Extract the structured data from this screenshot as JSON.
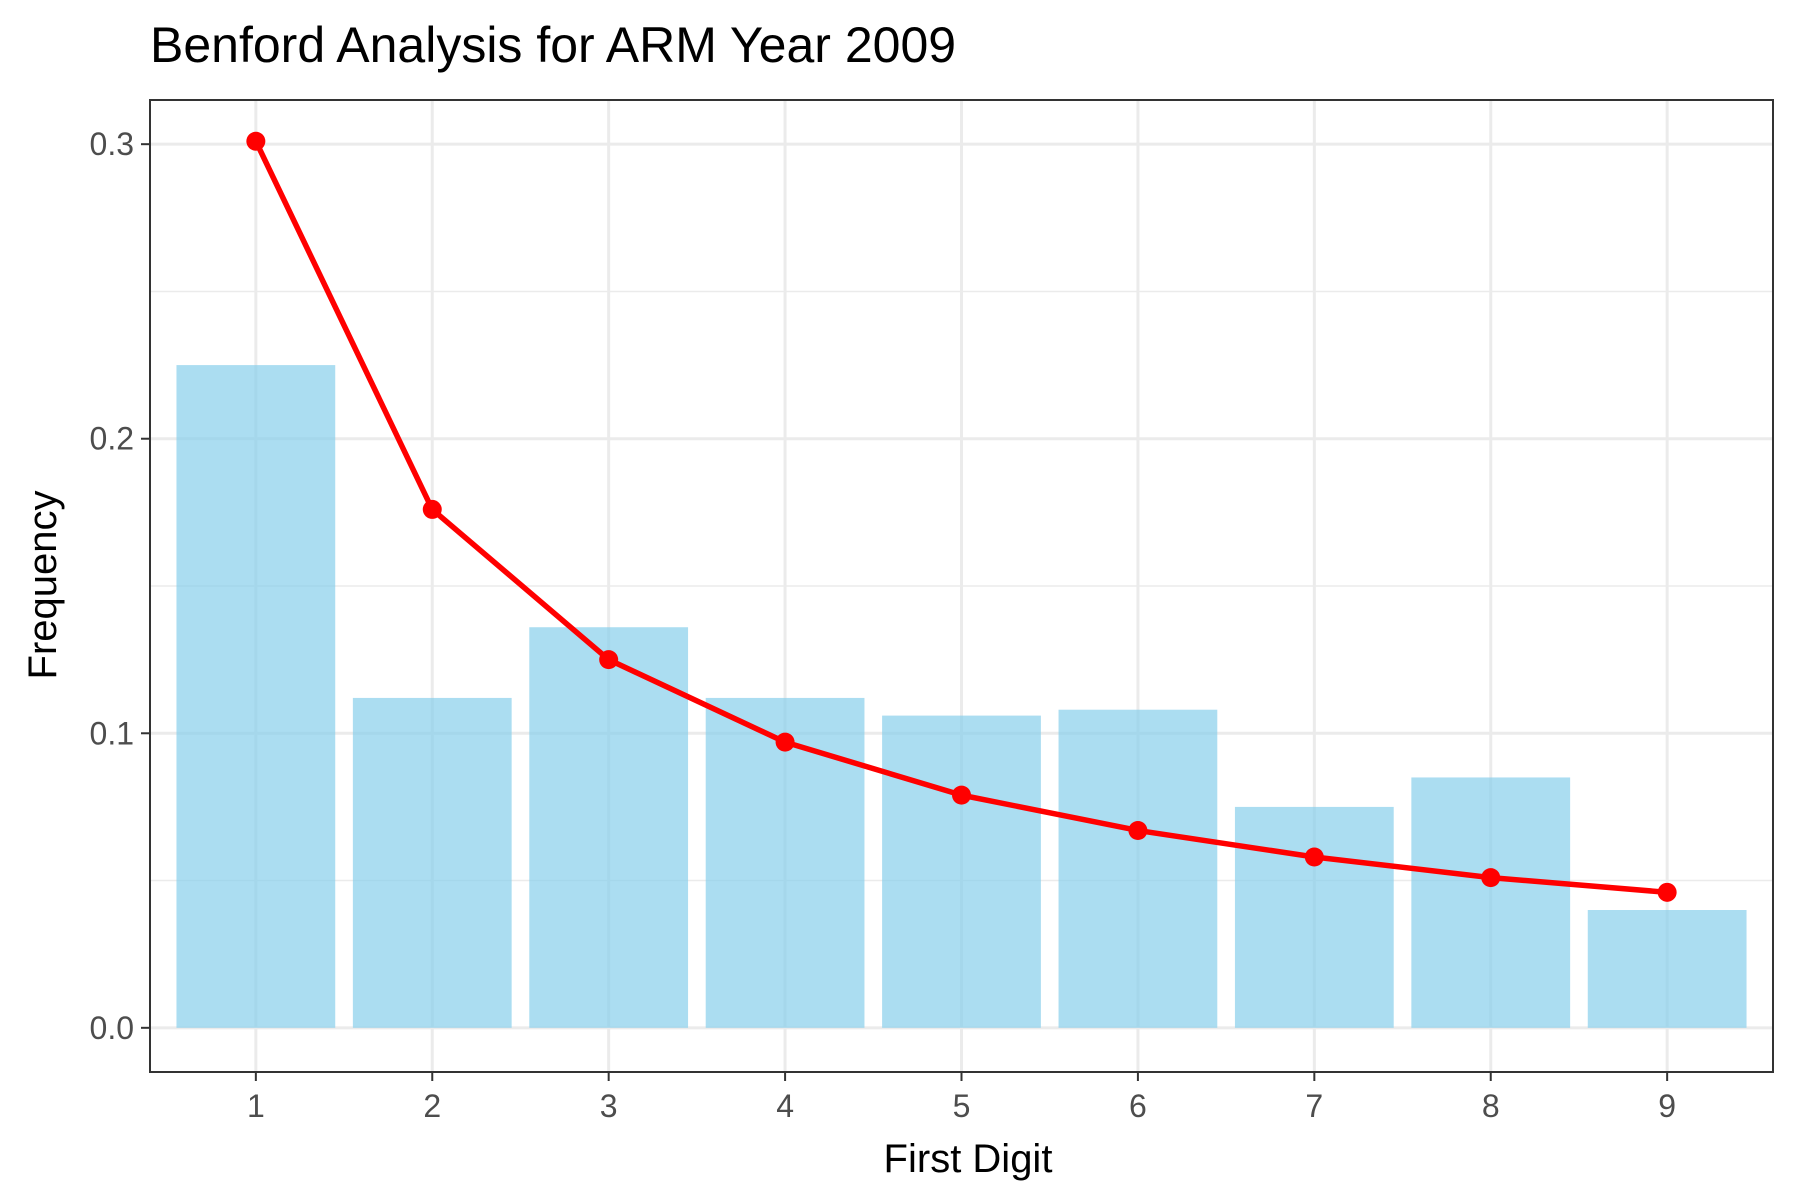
{
  "chart_data": {
    "type": "bar",
    "title": "Benford Analysis for ARM Year 2009",
    "xlabel": "First Digit",
    "ylabel": "Frequency",
    "categories": [
      "1",
      "2",
      "3",
      "4",
      "5",
      "6",
      "7",
      "8",
      "9"
    ],
    "ylim": [
      -0.015,
      0.315
    ],
    "y_ticks": [
      "0.0",
      "0.1",
      "0.2",
      "0.3"
    ],
    "y_tick_values": [
      0.0,
      0.1,
      0.2,
      0.3
    ],
    "grid": true,
    "legend": "none",
    "series": [
      {
        "type": "bar",
        "color": "#87CEEB",
        "opacity": 0.7,
        "values": [
          0.225,
          0.112,
          0.136,
          0.112,
          0.106,
          0.108,
          0.075,
          0.085,
          0.04
        ]
      },
      {
        "type": "line",
        "color": "#FF0000",
        "markers": true,
        "values": [
          0.301,
          0.176,
          0.125,
          0.097,
          0.079,
          0.067,
          0.058,
          0.051,
          0.046
        ]
      }
    ]
  }
}
